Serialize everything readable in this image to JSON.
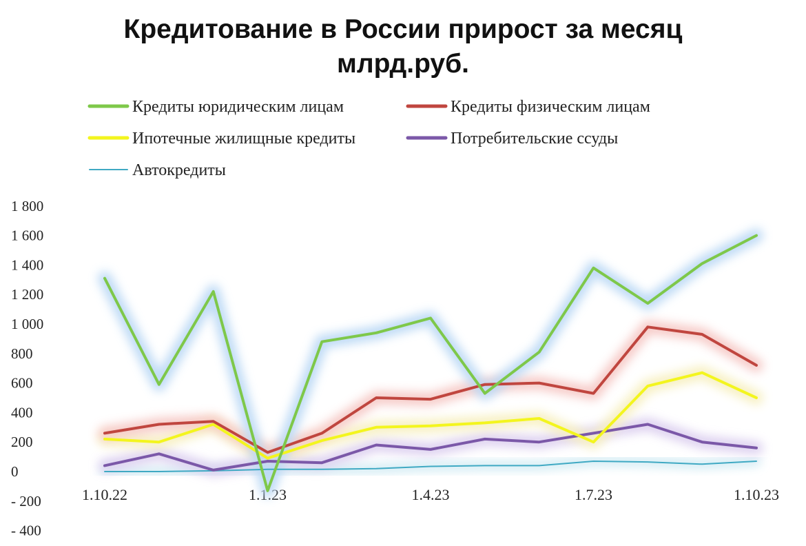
{
  "chart_data": {
    "type": "line",
    "title": "Кредитование в России прирост за месяц",
    "subtitle": "млрд.руб.",
    "xlabel": "",
    "ylabel": "",
    "grid": false,
    "legend_position": "top",
    "x": [
      "1.10.22",
      "1.11.22",
      "1.12.22",
      "1.1.23",
      "1.2.23",
      "1.3.23",
      "1.4.23",
      "1.5.23",
      "1.6.23",
      "1.7.23",
      "1.8.23",
      "1.9.23",
      "1.10.23"
    ],
    "x_tick_labels": [
      "1.10.22",
      "1.1.23",
      "1.4.23",
      "1.7.23",
      "1.10.23"
    ],
    "y_ticks": [
      -400,
      -200,
      0,
      200,
      400,
      600,
      800,
      1000,
      1200,
      1400,
      1600,
      1800
    ],
    "y_tick_labels": [
      "- 400",
      "- 200",
      "0",
      "200",
      "400",
      "600",
      "800",
      "1 000",
      "1 200",
      "1 400",
      "1 600",
      "1 800"
    ],
    "negative_tick_color": "#e0342a",
    "ylim": [
      -400,
      1800
    ],
    "series": [
      {
        "name": "Кредиты юридическим лицам",
        "color": "#7ec84a",
        "glow": "#bcd9f5",
        "values": [
          1310,
          590,
          1220,
          -130,
          880,
          940,
          1040,
          530,
          810,
          1380,
          1140,
          1410,
          1600
        ]
      },
      {
        "name": "Кредиты физическим лицам",
        "color": "#c0463f",
        "glow": "#f6c9c6",
        "values": [
          260,
          320,
          340,
          130,
          260,
          500,
          490,
          590,
          600,
          530,
          980,
          930,
          720
        ]
      },
      {
        "name": "Ипотечные жилищные кредиты",
        "color": "#f3f51e",
        "glow": "#f7f0c0",
        "values": [
          220,
          200,
          320,
          90,
          210,
          300,
          310,
          330,
          360,
          200,
          580,
          670,
          500
        ]
      },
      {
        "name": "Потребительские ссуды",
        "color": "#7b58a8",
        "glow": "#ddd0f0",
        "values": [
          40,
          120,
          10,
          70,
          60,
          180,
          150,
          220,
          200,
          260,
          320,
          200,
          160
        ]
      },
      {
        "name": "Автокредиты",
        "color": "#3fa9c3",
        "glow": "#cfeaf3",
        "values": [
          0,
          0,
          5,
          15,
          15,
          20,
          35,
          40,
          40,
          70,
          65,
          50,
          70
        ]
      }
    ]
  }
}
